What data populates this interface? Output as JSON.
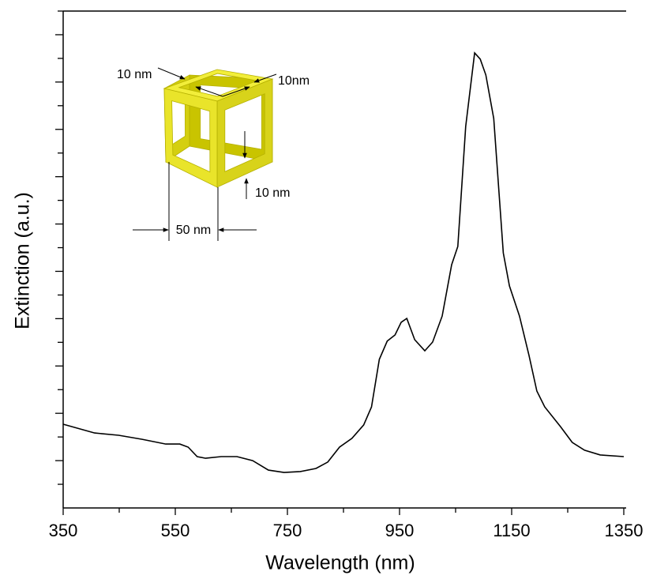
{
  "chart_data": {
    "type": "line",
    "x_label": "Wavelength (nm)",
    "y_label": "Extinction (a.u.)",
    "x": [
      350,
      406,
      449,
      491,
      533,
      558,
      573,
      589,
      604,
      632,
      660,
      688,
      716,
      744,
      773,
      801,
      822,
      843,
      865,
      886,
      900,
      914,
      928,
      942,
      953,
      963,
      977,
      995,
      1009,
      1026,
      1043,
      1054,
      1068,
      1084,
      1094,
      1104,
      1118,
      1135,
      1146,
      1164,
      1181,
      1195,
      1209,
      1237,
      1258,
      1280,
      1308,
      1350
    ],
    "series": [
      {
        "color": "#000000",
        "values": [
          3.54,
          3.17,
          3.07,
          2.9,
          2.7,
          2.7,
          2.57,
          2.17,
          2.1,
          2.17,
          2.17,
          2.0,
          1.6,
          1.5,
          1.54,
          1.67,
          1.94,
          2.57,
          2.94,
          3.51,
          4.27,
          6.28,
          7.05,
          7.31,
          7.85,
          8.01,
          7.11,
          6.64,
          7.01,
          8.11,
          10.28,
          11.05,
          16.13,
          19.23,
          18.97,
          18.3,
          16.46,
          10.78,
          9.38,
          8.11,
          6.44,
          4.94,
          4.27,
          3.44,
          2.77,
          2.44,
          2.24,
          2.17
        ]
      }
    ],
    "xlim": [
      350,
      1350
    ],
    "xticks": [
      350,
      550,
      750,
      950,
      1150,
      1350
    ],
    "xminorticks": [
      450,
      650,
      850,
      1050,
      1250
    ],
    "ylim": [
      0,
      21
    ],
    "yticks": [
      1,
      2,
      3,
      4,
      5,
      6,
      7,
      8,
      9,
      10,
      11,
      12,
      13,
      14,
      15,
      16,
      17,
      18,
      19,
      20,
      21
    ],
    "annotations": [
      "10 nm",
      "10nm",
      "10 nm",
      "50 nm"
    ]
  }
}
